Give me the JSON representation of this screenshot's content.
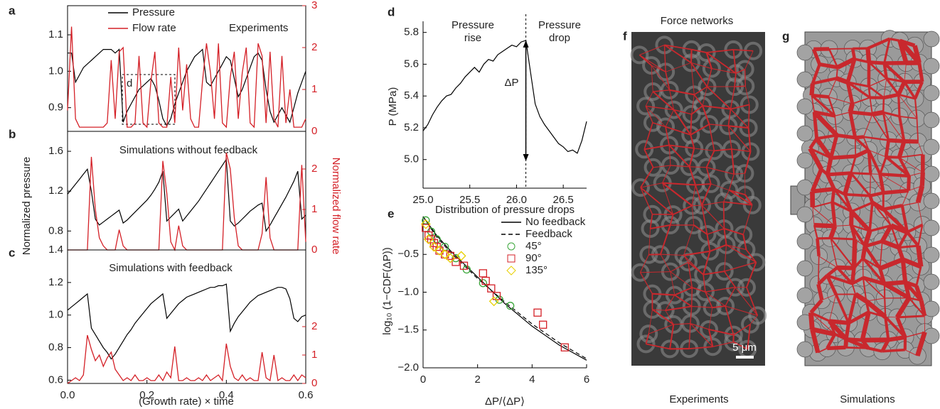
{
  "chart_data": [
    {
      "type": "line",
      "label": "a",
      "annotations": [
        "Experiments",
        "d"
      ],
      "x": [
        0,
        0.01,
        0.02,
        0.03,
        0.04,
        0.05,
        0.06,
        0.07,
        0.08,
        0.09,
        0.1,
        0.11,
        0.12,
        0.13,
        0.14,
        0.15,
        0.16,
        0.17,
        0.18,
        0.19,
        0.2,
        0.21,
        0.22,
        0.23,
        0.24,
        0.25,
        0.26,
        0.27,
        0.28,
        0.29,
        0.3,
        0.31,
        0.32,
        0.33,
        0.34,
        0.35,
        0.36,
        0.37,
        0.38,
        0.39,
        0.4,
        0.41,
        0.42,
        0.43,
        0.44,
        0.45,
        0.46,
        0.47,
        0.48,
        0.49,
        0.5,
        0.51,
        0.52,
        0.53,
        0.54,
        0.55,
        0.56,
        0.57,
        0.58,
        0.59,
        0.6
      ],
      "xlim": [
        0,
        0.6
      ],
      "ylim": [
        0.835,
        1.18
      ],
      "yticks": [
        0.9,
        {
          "value": 1,
          "label": "1.0"
        },
        1.1
      ],
      "y2lim": [
        0,
        3
      ],
      "y2ticks": [
        0,
        1,
        2,
        3
      ],
      "series": [
        {
          "name": "Pressure",
          "color": "#000000",
          "values": [
            1.05,
            1.05,
            0.97,
            0.99,
            1.01,
            1.02,
            1.03,
            1.04,
            1.05,
            1.06,
            1.06,
            1.06,
            1.05,
            1.06,
            0.86,
            0.89,
            0.91,
            0.93,
            0.95,
            0.96,
            0.97,
            0.98,
            0.96,
            0.92,
            0.87,
            0.85,
            0.87,
            0.91,
            0.94,
            0.97,
            1.0,
            1.02,
            1.04,
            1.05,
            1.06,
            0.97,
            0.96,
            0.98,
            1.0,
            1.02,
            1.04,
            1.03,
            0.98,
            0.93,
            0.95,
            0.98,
            1.01,
            1.04,
            1.05,
            1.03,
            0.95,
            0.89,
            0.86,
            0.88,
            0.9,
            0.88,
            0.86,
            0.9,
            0.94,
            0.97,
            1.0
          ]
        },
        {
          "name": "Flow rate",
          "color": "#d42027",
          "axis": "y2",
          "values": [
            0.5,
            2.5,
            0.3,
            0.1,
            0.1,
            0.1,
            0.1,
            0.1,
            0.1,
            0.1,
            0.2,
            1.7,
            0.3,
            1.9,
            2.0,
            0.1,
            0.1,
            0.2,
            1.8,
            0.2,
            0.1,
            1.2,
            1.9,
            0.2,
            0.1,
            0.1,
            1.3,
            0.2,
            2.0,
            0.5,
            1.6,
            0.3,
            0.1,
            0.1,
            1.2,
            2.1,
            1.4,
            0.3,
            2.1,
            0.2,
            0.1,
            1.3,
            1.9,
            0.3,
            1.4,
            2.0,
            0.2,
            0.1,
            2.1,
            1.8,
            0.2,
            1.9,
            0.3,
            0.1,
            1.8,
            0.2,
            1.0,
            0.1,
            0.1,
            0.1,
            0.3
          ]
        }
      ]
    },
    {
      "type": "line",
      "label": "b",
      "title": "Simulations without feedback",
      "ylabel": "Normalized pressure",
      "y2label": "Normalized flow rate",
      "x": [
        0,
        0.01,
        0.02,
        0.03,
        0.04,
        0.05,
        0.06,
        0.07,
        0.08,
        0.09,
        0.1,
        0.11,
        0.12,
        0.13,
        0.14,
        0.15,
        0.16,
        0.17,
        0.18,
        0.19,
        0.2,
        0.21,
        0.22,
        0.23,
        0.24,
        0.25,
        0.26,
        0.27,
        0.28,
        0.29,
        0.3,
        0.31,
        0.32,
        0.33,
        0.34,
        0.35,
        0.36,
        0.37,
        0.38,
        0.39,
        0.4,
        0.41,
        0.42,
        0.43,
        0.44,
        0.45,
        0.46,
        0.47,
        0.48,
        0.49,
        0.5,
        0.51,
        0.52,
        0.53,
        0.54,
        0.55,
        0.56,
        0.57,
        0.58,
        0.59,
        0.6
      ],
      "xlim": [
        0,
        0.6
      ],
      "ylim": [
        0.61,
        1.8
      ],
      "yticks": [
        0.8,
        1.2,
        1.6
      ],
      "y2lim": [
        0,
        2.93
      ],
      "y2ticks": [
        0,
        1,
        2
      ],
      "series": [
        {
          "color": "#000000",
          "values": [
            1.17,
            1.22,
            1.27,
            1.32,
            1.37,
            1.42,
            1.2,
            0.92,
            0.86,
            0.89,
            0.92,
            0.95,
            0.98,
            1.01,
            0.88,
            0.91,
            0.95,
            0.99,
            1.03,
            1.07,
            1.11,
            1.16,
            1.22,
            1.29,
            1.4,
            0.9,
            0.94,
            0.98,
            1.02,
            0.9,
            0.95,
            1.0,
            1.05,
            1.1,
            1.16,
            1.22,
            1.28,
            1.34,
            1.4,
            1.46,
            1.52,
            0.9,
            0.85,
            0.88,
            0.92,
            0.96,
            1.0,
            1.03,
            1.06,
            1.08,
            0.8,
            0.86,
            0.93,
            1.0,
            1.07,
            1.14,
            1.22,
            1.3,
            1.4,
            0.92,
            0.96
          ]
        },
        {
          "color": "#d42027",
          "axis": "y2",
          "values": [
            0,
            0,
            0,
            0,
            0,
            0,
            2.3,
            1.0,
            0.3,
            0.1,
            0,
            0,
            0,
            0.5,
            0.1,
            0,
            0,
            0,
            0,
            0,
            0,
            0,
            0,
            0,
            2.2,
            1.4,
            0.2,
            0,
            0.6,
            0.1,
            0,
            0,
            0,
            0,
            0,
            0,
            0,
            0,
            0,
            0,
            2.4,
            2.0,
            0.8,
            0.1,
            0,
            0,
            0,
            0,
            0,
            0.4,
            1.8,
            0.3,
            0,
            0,
            0,
            0,
            0,
            0,
            0,
            2.1,
            0.2
          ]
        }
      ]
    },
    {
      "type": "line",
      "label": "c",
      "title": "Simulations with feedback",
      "xlabel": "(Growth rate) × time",
      "x": [
        0,
        0.01,
        0.02,
        0.03,
        0.04,
        0.05,
        0.06,
        0.07,
        0.08,
        0.09,
        0.1,
        0.11,
        0.12,
        0.13,
        0.14,
        0.15,
        0.16,
        0.17,
        0.18,
        0.19,
        0.2,
        0.21,
        0.22,
        0.23,
        0.24,
        0.25,
        0.26,
        0.27,
        0.28,
        0.29,
        0.3,
        0.31,
        0.32,
        0.33,
        0.34,
        0.35,
        0.36,
        0.37,
        0.38,
        0.39,
        0.4,
        0.41,
        0.42,
        0.43,
        0.44,
        0.45,
        0.46,
        0.47,
        0.48,
        0.49,
        0.5,
        0.51,
        0.52,
        0.53,
        0.54,
        0.55,
        0.56,
        0.57,
        0.58,
        0.59,
        0.6
      ],
      "xlim": [
        0,
        0.6
      ],
      "xticks": [
        {
          "value": 0,
          "label": "0.0"
        },
        0.2,
        0.4,
        0.6
      ],
      "ylim": [
        0.58,
        1.4
      ],
      "yticks": [
        0.6,
        0.8,
        {
          "value": 1,
          "label": "1.0"
        },
        1.2,
        1.4
      ],
      "y2lim": [
        0,
        4.7
      ],
      "y2ticks": [
        0,
        1,
        2
      ],
      "series": [
        {
          "color": "#000000",
          "values": [
            1.03,
            1.05,
            1.07,
            1.09,
            1.11,
            1.13,
            0.92,
            0.88,
            0.84,
            0.8,
            0.77,
            0.73,
            0.76,
            0.8,
            0.84,
            0.88,
            0.91,
            0.95,
            0.98,
            1.01,
            1.04,
            1.07,
            1.09,
            1.11,
            1.13,
            0.98,
            1.01,
            1.04,
            1.07,
            1.09,
            1.11,
            1.12,
            1.13,
            1.14,
            1.15,
            1.16,
            1.17,
            1.17,
            1.18,
            1.18,
            1.19,
            0.9,
            0.95,
            0.99,
            1.02,
            1.05,
            1.08,
            1.1,
            1.12,
            1.13,
            1.14,
            1.15,
            1.16,
            1.17,
            1.17,
            1.16,
            1.1,
            0.98,
            0.96,
            0.99,
            1.0
          ]
        },
        {
          "color": "#d42027",
          "axis": "y2",
          "values": [
            0,
            0.1,
            0.2,
            0.1,
            0.3,
            1.7,
            1.2,
            0.8,
            1.0,
            0.6,
            0.9,
            1.1,
            0.5,
            0.3,
            0.1,
            0.2,
            0.1,
            0.3,
            0.1,
            0.1,
            0.2,
            0.1,
            0.1,
            0.3,
            0.1,
            0.4,
            0.2,
            1.3,
            0.1,
            0.1,
            0.2,
            0.1,
            0.1,
            0.2,
            0.1,
            0.3,
            0.1,
            0.2,
            0.3,
            0.1,
            1.4,
            0.6,
            0.2,
            0.1,
            0.3,
            0.1,
            0.2,
            0.1,
            0.1,
            1.1,
            0.2,
            0.1,
            1.0,
            0.1,
            0.2,
            0.1,
            0.1,
            0.3,
            0.1,
            0.3,
            0.2
          ]
        }
      ]
    },
    {
      "type": "line",
      "label": "d",
      "ylabel": "P (MPa)",
      "annotations": [
        "Pressure rise",
        "Pressure drop",
        "ΔP"
      ],
      "x": [
        25,
        25.05,
        25.1,
        25.15,
        25.2,
        25.25,
        25.3,
        25.35,
        25.4,
        25.45,
        25.5,
        25.55,
        25.6,
        25.65,
        25.7,
        25.75,
        25.8,
        25.85,
        25.9,
        25.95,
        26,
        26.05,
        26.1,
        26.15,
        26.2,
        26.25,
        26.3,
        26.35,
        26.4,
        26.45,
        26.5,
        26.55,
        26.6,
        26.65,
        26.7,
        26.75
      ],
      "xlim": [
        25,
        26.75
      ],
      "xticks": [
        {
          "value": 25,
          "label": "25.0"
        },
        25.5,
        {
          "value": 26,
          "label": "26.0"
        },
        26.5
      ],
      "ylim": [
        4.82,
        5.87
      ],
      "yticks": [
        {
          "value": 5,
          "label": "5.0"
        },
        5.2,
        5.4,
        5.6,
        5.8
      ],
      "series": [
        {
          "color": "#000000",
          "values": [
            5.18,
            5.22,
            5.28,
            5.33,
            5.37,
            5.4,
            5.41,
            5.45,
            5.48,
            5.52,
            5.55,
            5.58,
            5.55,
            5.6,
            5.63,
            5.62,
            5.66,
            5.68,
            5.7,
            5.72,
            5.71,
            5.74,
            5.75,
            5.55,
            5.35,
            5.27,
            5.22,
            5.18,
            5.14,
            5.1,
            5.08,
            5.05,
            5.06,
            5.04,
            5.12,
            5.24
          ]
        }
      ]
    },
    {
      "type": "scatter",
      "label": "e",
      "title": "Distribution of pressure drops",
      "xlabel": "ΔP/⟨ΔP⟩",
      "ylabel": "log₁₀ (1−CDF(ΔP))",
      "xlim": [
        0,
        6
      ],
      "xticks": [
        0,
        2,
        4,
        6
      ],
      "ylim": [
        -2,
        0
      ],
      "yticks": [
        {
          "value": -2,
          "label": "−2.0"
        },
        {
          "value": -1.5,
          "label": "−1.5"
        },
        {
          "value": -1,
          "label": "−1.0"
        },
        {
          "value": -0.5,
          "label": "−0.5"
        }
      ],
      "series": [
        {
          "name": "No feedback",
          "color": "#000000",
          "x": [
            0,
            0.5,
            1,
            2,
            3,
            4,
            5,
            6
          ],
          "values": [
            0,
            -0.25,
            -0.45,
            -0.8,
            -1.15,
            -1.45,
            -1.7,
            -1.9
          ]
        },
        {
          "name": "Feedback",
          "color": "#000000",
          "dashed": true,
          "x": [
            0,
            0.5,
            1,
            2,
            3,
            4,
            5,
            6
          ],
          "values": [
            0,
            -0.27,
            -0.47,
            -0.82,
            -1.13,
            -1.42,
            -1.67,
            -1.88
          ]
        },
        {
          "name": "45°",
          "color": "#3aa63a",
          "marker": "circle",
          "x": [
            0.1,
            0.3,
            0.5,
            0.8,
            1.2,
            1.6,
            2.2,
            2.8,
            3.2
          ],
          "values": [
            -0.05,
            -0.2,
            -0.3,
            -0.4,
            -0.55,
            -0.7,
            -0.88,
            -1.1,
            -1.18
          ]
        },
        {
          "name": "90°",
          "color": "#d42027",
          "marker": "square",
          "x": [
            0.1,
            0.2,
            0.3,
            0.4,
            0.5,
            0.6,
            0.8,
            1.0,
            1.2,
            1.5,
            2.2,
            2.3,
            2.5,
            2.7,
            4.2,
            4.4,
            5.2
          ],
          "values": [
            -0.15,
            -0.25,
            -0.3,
            -0.35,
            -0.4,
            -0.45,
            -0.5,
            -0.52,
            -0.6,
            -0.65,
            -0.75,
            -0.85,
            -0.95,
            -1.05,
            -1.27,
            -1.43,
            -1.73
          ]
        },
        {
          "name": "135°",
          "color": "#e8d000",
          "marker": "diamond",
          "x": [
            0.1,
            0.2,
            0.4,
            0.6,
            0.8,
            1.0,
            1.4,
            2.6
          ],
          "values": [
            -0.1,
            -0.3,
            -0.4,
            -0.45,
            -0.5,
            -0.55,
            -0.52,
            -1.12
          ]
        }
      ]
    }
  ],
  "figure": {
    "title": "Force networks",
    "panels": [
      {
        "label": "f",
        "caption": "Experiments",
        "scale_bar": "5 μm"
      },
      {
        "label": "g",
        "caption": "Simulations"
      }
    ]
  }
}
